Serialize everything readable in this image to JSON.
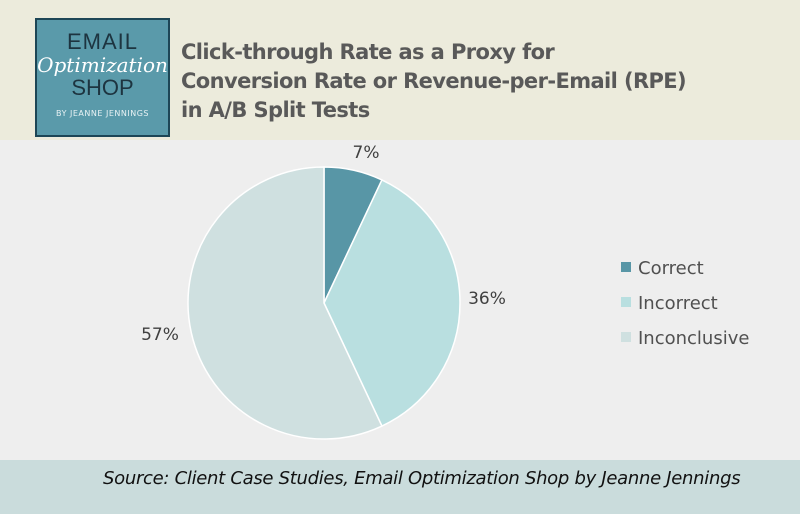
{
  "logo": {
    "line1": "EMAIL",
    "line2": "Optimization",
    "line3": "SHOP",
    "line4": "BY JEANNE JENNINGS"
  },
  "title_lines": [
    "Click-through Rate as a Proxy for",
    "Conversion Rate or Revenue-per-Email (RPE)",
    "in A/B Split Tests"
  ],
  "source": "Source: Client Case Studies, Email Optimization Shop by Jeanne Jennings",
  "chart_data": {
    "type": "pie",
    "title": "Click-through Rate as a Proxy for Conversion Rate or Revenue-per-Email (RPE) in A/B Split Tests",
    "categories": [
      "Correct",
      "Incorrect",
      "Inconclusive"
    ],
    "values": [
      7,
      36,
      57
    ],
    "data_labels": [
      "7%",
      "36%",
      "57%"
    ],
    "colors": [
      "#5896a6",
      "#b9dfe0",
      "#cfe0e0"
    ],
    "legend": "right"
  }
}
